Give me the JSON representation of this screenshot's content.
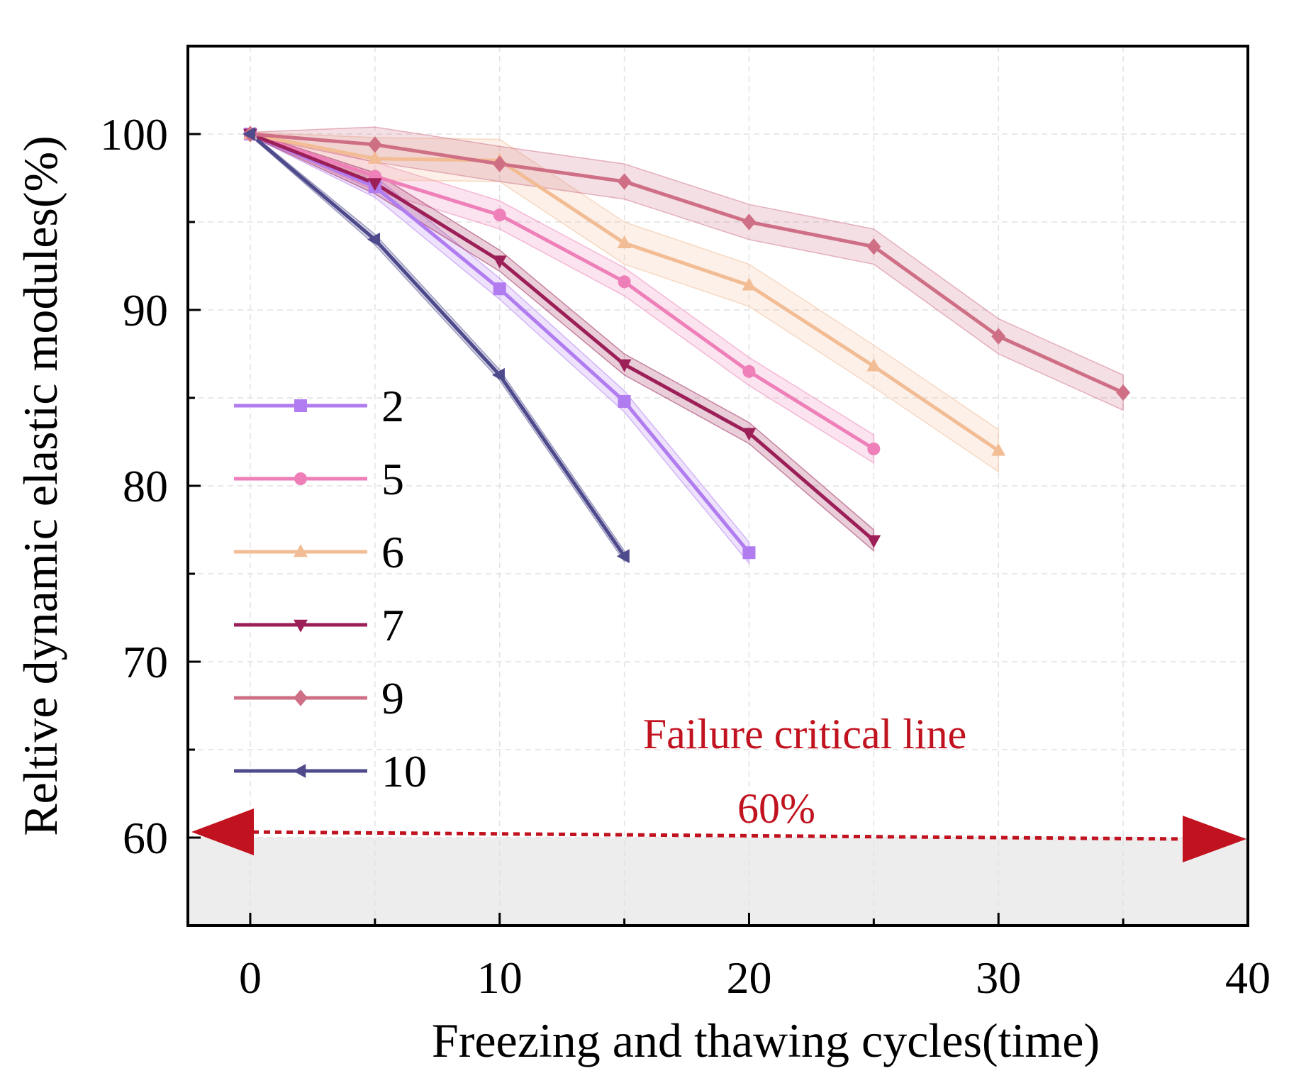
{
  "chart_data": {
    "type": "line",
    "xlabel": "Freezing and thawing cycles(time)",
    "ylabel": "Reltive dynamic elastic modules(%)",
    "xlim": [
      -2.5,
      40
    ],
    "ylim": [
      55,
      105
    ],
    "xticks": [
      0,
      10,
      20,
      30,
      40
    ],
    "yticks": [
      60,
      70,
      80,
      90,
      100
    ],
    "x_tick_labels": [
      "0",
      "10",
      "20",
      "30",
      "40"
    ],
    "y_tick_labels": [
      "60",
      "70",
      "80",
      "90",
      "100"
    ],
    "grid": true,
    "legend_position": "left-middle",
    "series": [
      {
        "name": "2",
        "marker": "square",
        "color": "#b07cf0",
        "band": 0.6,
        "x": [
          0,
          5,
          10,
          15,
          20
        ],
        "y": [
          100,
          97.0,
          91.2,
          84.8,
          76.2
        ]
      },
      {
        "name": "5",
        "marker": "circle",
        "color": "#ee7fb8",
        "band": 0.8,
        "x": [
          0,
          5,
          10,
          15,
          20,
          25
        ],
        "y": [
          100,
          97.6,
          95.4,
          91.6,
          86.5,
          82.1
        ]
      },
      {
        "name": "6",
        "marker": "triangle-up",
        "color": "#f2bc94",
        "band": 1.2,
        "x": [
          0,
          5,
          10,
          15,
          20,
          25,
          30
        ],
        "y": [
          100,
          98.6,
          98.5,
          93.8,
          91.4,
          86.8,
          82.0
        ]
      },
      {
        "name": "7",
        "marker": "triangle-down",
        "color": "#9c1f57",
        "band": 0.6,
        "x": [
          0,
          5,
          10,
          15,
          20,
          25
        ],
        "y": [
          100,
          97.2,
          92.8,
          86.9,
          83.0,
          76.9
        ]
      },
      {
        "name": "9",
        "marker": "diamond",
        "color": "#cf6f86",
        "band": 1.0,
        "x": [
          0,
          5,
          10,
          15,
          20,
          25,
          30,
          35
        ],
        "y": [
          100,
          99.4,
          98.3,
          97.3,
          95.0,
          93.6,
          88.5,
          85.3
        ]
      },
      {
        "name": "10",
        "marker": "triangle-left",
        "color": "#4e4a8c",
        "band": 0.3,
        "x": [
          0,
          5,
          10,
          15
        ],
        "y": [
          100,
          94.0,
          86.3,
          76.0
        ]
      }
    ],
    "annotations": {
      "critical_line_value": 60,
      "critical_label": "Failure critical line",
      "critical_value_label": "60%",
      "color": "#c1121f",
      "failure_region_color": "#ededed"
    }
  }
}
